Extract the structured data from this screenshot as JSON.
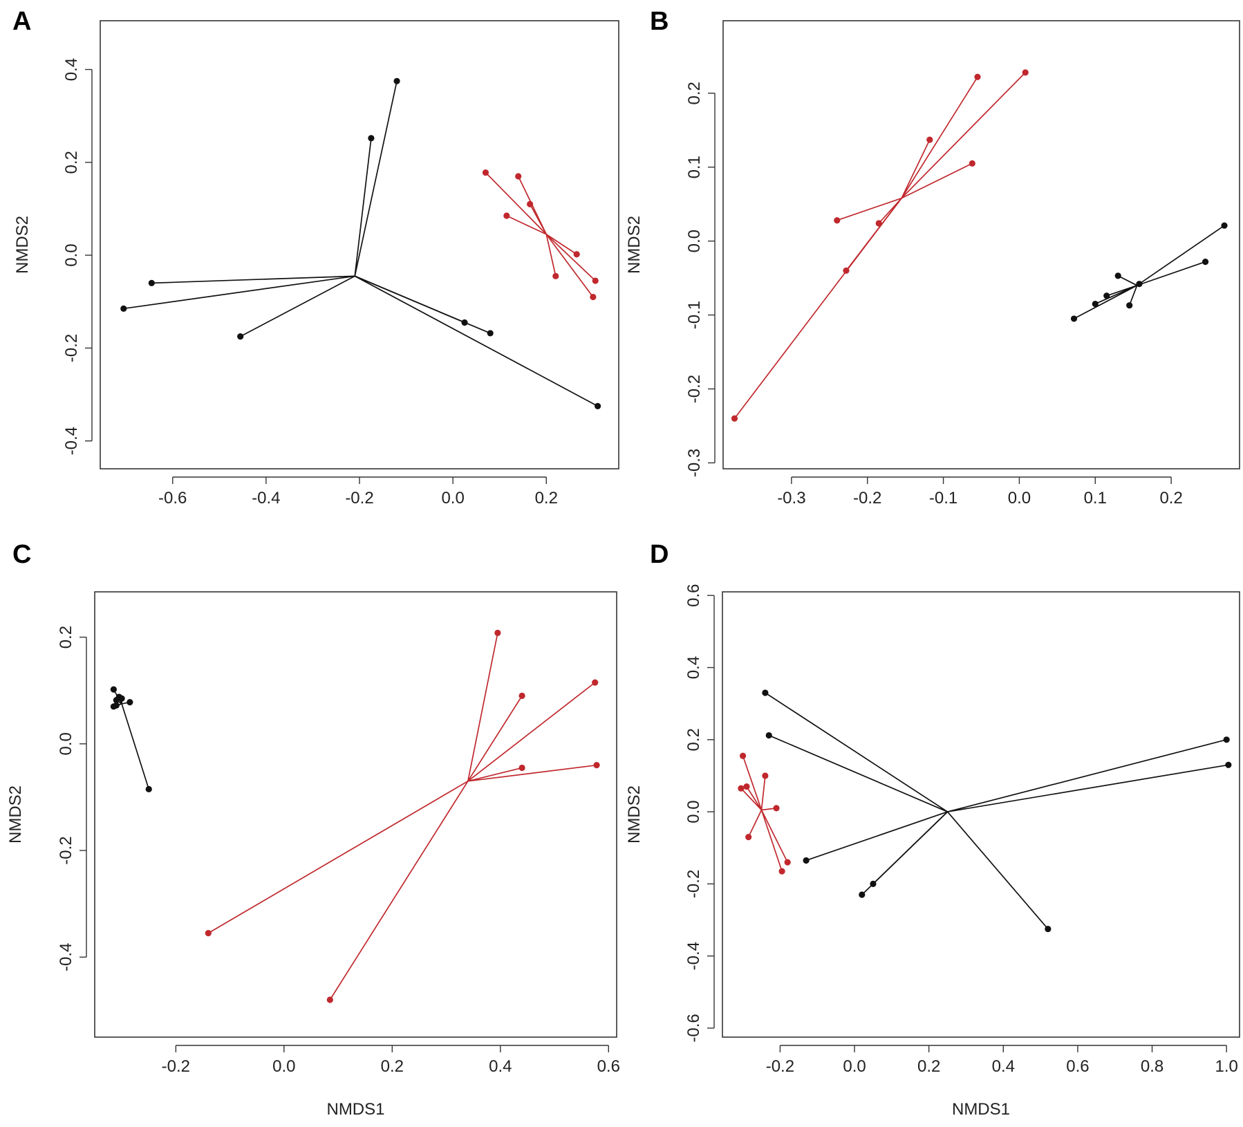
{
  "colors": {
    "group_red": "#c0282d",
    "group_black": "#111111",
    "axis": "#333333"
  },
  "chart_data": [
    {
      "type": "scatter",
      "panel": "A",
      "xlabel": "",
      "ylabel": "NMDS2",
      "xlim": [
        -0.755,
        0.355
      ],
      "ylim": [
        -0.46,
        0.505
      ],
      "xticks": [
        -0.6,
        -0.4,
        -0.2,
        0.0,
        0.2
      ],
      "xtick_labels": [
        "-0.6",
        "-0.4",
        "-0.2",
        "0.0",
        "0.2"
      ],
      "yticks": [
        -0.4,
        -0.2,
        0.0,
        0.2,
        0.4
      ],
      "ytick_labels": [
        "-0.4",
        "-0.2",
        "0.0",
        "0.2",
        "0.4"
      ],
      "series": [
        {
          "name": "black",
          "color": "#111111",
          "centroid": [
            -0.21,
            -0.045
          ],
          "points": [
            [
              -0.12,
              0.375
            ],
            [
              -0.175,
              0.252
            ],
            [
              -0.645,
              -0.06
            ],
            [
              -0.705,
              -0.115
            ],
            [
              -0.455,
              -0.175
            ],
            [
              0.025,
              -0.145
            ],
            [
              0.08,
              -0.168
            ],
            [
              0.31,
              -0.325
            ]
          ]
        },
        {
          "name": "red",
          "color": "#c0282d",
          "centroid": [
            0.2,
            0.045
          ],
          "points": [
            [
              0.07,
              0.178
            ],
            [
              0.14,
              0.17
            ],
            [
              0.165,
              0.11
            ],
            [
              0.115,
              0.085
            ],
            [
              0.265,
              0.002
            ],
            [
              0.305,
              -0.055
            ],
            [
              0.22,
              -0.045
            ],
            [
              0.3,
              -0.09
            ]
          ]
        }
      ]
    },
    {
      "type": "scatter",
      "panel": "B",
      "xlabel": "",
      "ylabel": "NMDS2",
      "xlim": [
        -0.39,
        0.29
      ],
      "ylim": [
        -0.308,
        0.298
      ],
      "xticks": [
        -0.3,
        -0.2,
        -0.1,
        0.0,
        0.1,
        0.2
      ],
      "xtick_labels": [
        "-0.3",
        "-0.2",
        "-0.1",
        "0.0",
        "0.1",
        "0.2"
      ],
      "yticks": [
        -0.3,
        -0.2,
        -0.1,
        0.0,
        0.1,
        0.2
      ],
      "ytick_labels": [
        "-0.3",
        "-0.2",
        "-0.1",
        "0.0",
        "0.1",
        "0.2"
      ],
      "series": [
        {
          "name": "red",
          "color": "#c0282d",
          "centroid": [
            -0.155,
            0.058
          ],
          "points": [
            [
              -0.055,
              0.222
            ],
            [
              0.008,
              0.228
            ],
            [
              -0.118,
              0.137
            ],
            [
              -0.062,
              0.105
            ],
            [
              -0.24,
              0.028
            ],
            [
              -0.185,
              0.024
            ],
            [
              -0.228,
              -0.04
            ],
            [
              -0.375,
              -0.24
            ]
          ]
        },
        {
          "name": "black",
          "color": "#111111",
          "centroid": [
            0.155,
            -0.06
          ],
          "points": [
            [
              0.27,
              0.021
            ],
            [
              0.245,
              -0.028
            ],
            [
              0.13,
              -0.047
            ],
            [
              0.158,
              -0.058
            ],
            [
              0.115,
              -0.074
            ],
            [
              0.1,
              -0.085
            ],
            [
              0.145,
              -0.087
            ],
            [
              0.072,
              -0.105
            ]
          ]
        }
      ]
    },
    {
      "type": "scatter",
      "panel": "C",
      "xlabel": "NMDS1",
      "ylabel": "NMDS2",
      "xlim": [
        -0.35,
        0.615
      ],
      "ylim": [
        -0.55,
        0.285
      ],
      "xticks": [
        -0.2,
        0.0,
        0.2,
        0.4,
        0.6
      ],
      "xtick_labels": [
        "-0.2",
        "0.0",
        "0.2",
        "0.4",
        "0.6"
      ],
      "yticks": [
        -0.4,
        -0.2,
        0.0,
        0.2
      ],
      "ytick_labels": [
        "-0.4",
        "-0.2",
        "0.0",
        "0.2"
      ],
      "series": [
        {
          "name": "black",
          "color": "#111111",
          "centroid": [
            -0.3,
            0.075
          ],
          "points": [
            [
              -0.315,
              0.102
            ],
            [
              -0.305,
              0.088
            ],
            [
              -0.31,
              0.082
            ],
            [
              -0.3,
              0.085
            ],
            [
              -0.285,
              0.078
            ],
            [
              -0.31,
              0.072
            ],
            [
              -0.315,
              0.07
            ],
            [
              -0.25,
              -0.085
            ]
          ]
        },
        {
          "name": "red",
          "color": "#c0282d",
          "centroid": [
            0.34,
            -0.07
          ],
          "points": [
            [
              0.395,
              0.208
            ],
            [
              0.44,
              0.09
            ],
            [
              0.575,
              0.115
            ],
            [
              0.44,
              -0.045
            ],
            [
              0.578,
              -0.04
            ],
            [
              -0.14,
              -0.355
            ],
            [
              0.085,
              -0.48
            ]
          ]
        }
      ]
    },
    {
      "type": "scatter",
      "panel": "D",
      "xlabel": "NMDS1",
      "ylabel": "NMDS2",
      "xlim": [
        -0.355,
        1.035
      ],
      "ylim": [
        -0.625,
        0.61
      ],
      "xticks": [
        -0.2,
        0.0,
        0.2,
        0.4,
        0.6,
        0.8,
        1.0
      ],
      "xtick_labels": [
        "-0.2",
        "0.0",
        "0.2",
        "0.4",
        "0.6",
        "0.8",
        "1.0"
      ],
      "yticks": [
        -0.6,
        -0.4,
        -0.2,
        0.0,
        0.2,
        0.4,
        0.6
      ],
      "ytick_labels": [
        "-0.6",
        "-0.4",
        "-0.2",
        "0.0",
        "0.2",
        "0.4",
        "0.6"
      ],
      "series": [
        {
          "name": "black",
          "color": "#111111",
          "centroid": [
            0.25,
            0.0
          ],
          "points": [
            [
              -0.24,
              0.33
            ],
            [
              -0.23,
              0.212
            ],
            [
              1.0,
              0.2
            ],
            [
              1.005,
              0.13
            ],
            [
              -0.13,
              -0.135
            ],
            [
              0.05,
              -0.2
            ],
            [
              0.02,
              -0.23
            ],
            [
              0.52,
              -0.325
            ]
          ]
        },
        {
          "name": "red",
          "color": "#c0282d",
          "centroid": [
            -0.25,
            0.005
          ],
          "points": [
            [
              -0.3,
              0.155
            ],
            [
              -0.24,
              0.1
            ],
            [
              -0.29,
              0.07
            ],
            [
              -0.305,
              0.065
            ],
            [
              -0.21,
              0.01
            ],
            [
              -0.285,
              -0.07
            ],
            [
              -0.18,
              -0.14
            ],
            [
              -0.195,
              -0.165
            ]
          ]
        }
      ]
    }
  ]
}
